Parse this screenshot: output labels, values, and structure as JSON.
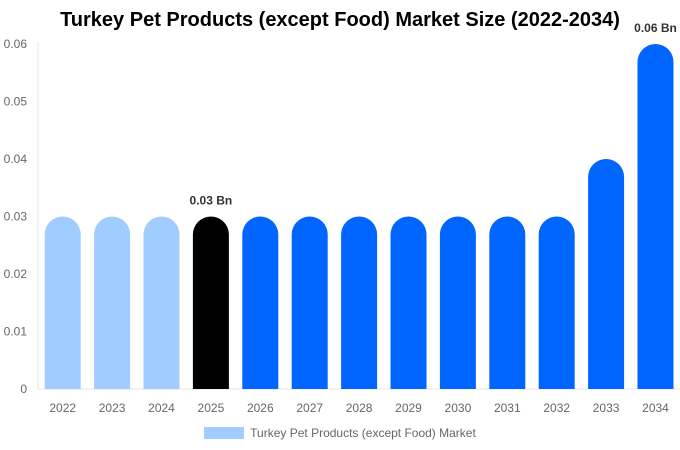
{
  "chart_data": {
    "type": "bar",
    "title": "Turkey Pet Products (except Food) Market Size (2022-2034)",
    "categories": [
      "2022",
      "2023",
      "2024",
      "2025",
      "2026",
      "2027",
      "2028",
      "2029",
      "2030",
      "2031",
      "2032",
      "2033",
      "2034"
    ],
    "series": [
      {
        "name": "Turkey Pet Products (except Food) Market",
        "values": [
          0.03,
          0.03,
          0.03,
          0.03,
          0.03,
          0.03,
          0.03,
          0.03,
          0.03,
          0.03,
          0.03,
          0.04,
          0.06
        ]
      }
    ],
    "bar_colors": [
      "#a0cdfd",
      "#a0cdfd",
      "#a0cdfd",
      "#000000",
      "#0066ff",
      "#0066ff",
      "#0066ff",
      "#0066ff",
      "#0066ff",
      "#0066ff",
      "#0066ff",
      "#0066ff",
      "#0066ff"
    ],
    "data_labels": [
      {
        "category": "2025",
        "text": "0.03 Bn"
      },
      {
        "category": "2034",
        "text": "0.06 Bn"
      }
    ],
    "ylim": [
      0,
      0.06
    ],
    "yticks": [
      "0",
      "0.01",
      "0.02",
      "0.03",
      "0.04",
      "0.05",
      "0.06"
    ],
    "xlabel": "",
    "ylabel": "",
    "grid": false,
    "legend_position": "bottom",
    "legend_color": "#a0cdfd"
  }
}
